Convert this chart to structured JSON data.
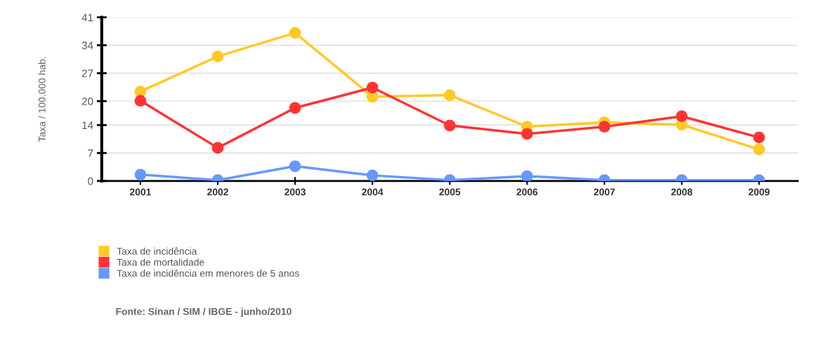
{
  "chart_data": {
    "type": "line",
    "ylabel": "Taxa / 100.000 hab.",
    "categories": [
      "2001",
      "2002",
      "2003",
      "2004",
      "2005",
      "2006",
      "2007",
      "2008",
      "2009"
    ],
    "series": [
      {
        "name": "Taxa de incidência",
        "color": "#ffc926",
        "values": [
          22.4,
          31.2,
          37.1,
          21.1,
          21.5,
          13.6,
          14.7,
          14.1,
          7.9
        ]
      },
      {
        "name": "Taxa de mortalidade",
        "color": "#ff3333",
        "values": [
          20.1,
          8.3,
          18.3,
          23.4,
          13.9,
          11.8,
          13.6,
          16.2,
          10.9
        ]
      },
      {
        "name": "Taxa de incidência em menores de 5 anos",
        "color": "#6699ff",
        "values": [
          1.6,
          0.2,
          3.7,
          1.4,
          0.2,
          1.2,
          0.2,
          0.2,
          0.2
        ]
      }
    ],
    "ylim": [
      0,
      41
    ],
    "yticks": [
      0,
      7,
      14,
      20,
      27,
      34,
      41
    ],
    "grid": "y",
    "legend": "bottom",
    "marker": "circle",
    "line_style": "solid",
    "annotations": [
      "Fonte: Sinan / SIM / IBGE - junho/2010"
    ]
  }
}
